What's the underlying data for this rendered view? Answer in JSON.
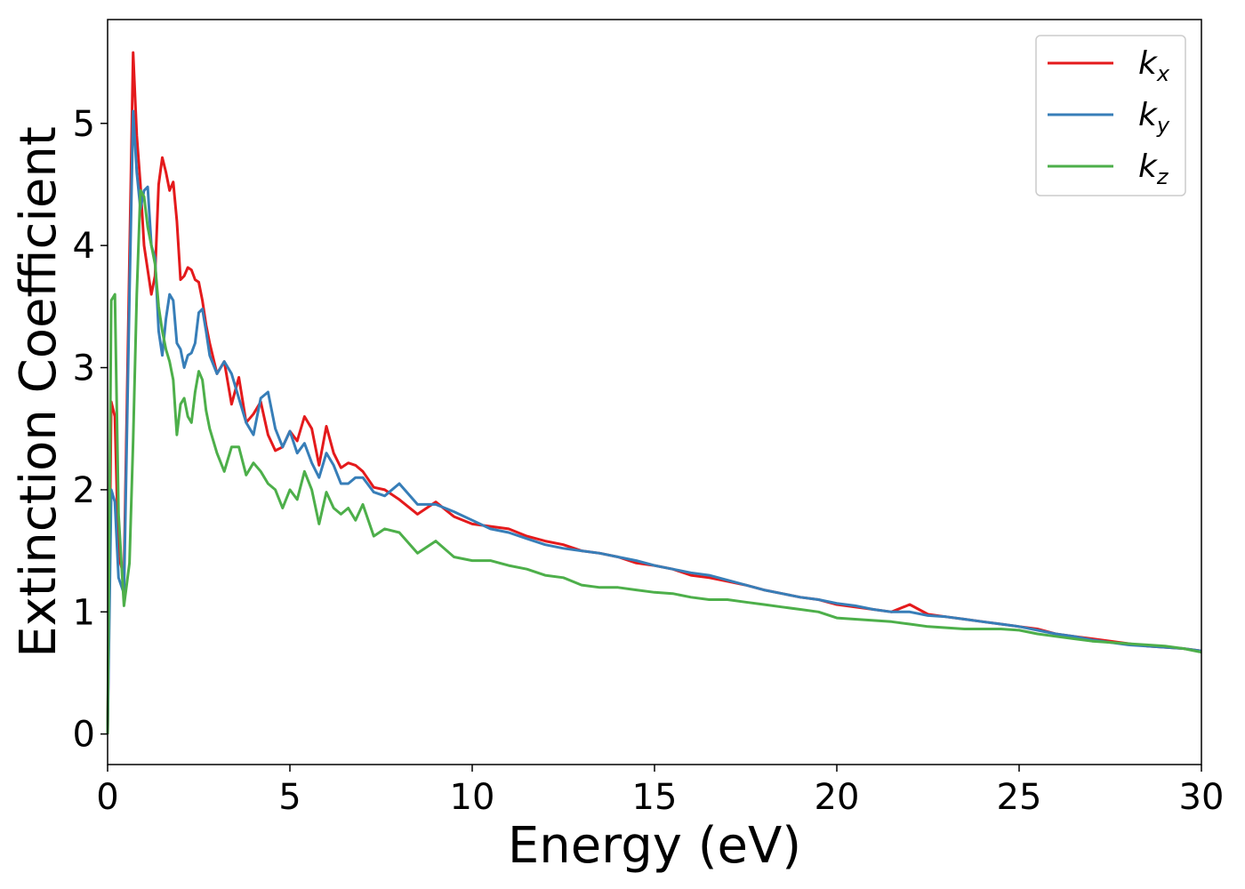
{
  "chart_data": {
    "type": "line",
    "title": "",
    "xlabel": "Energy (eV)",
    "ylabel": "Extinction Coefficient",
    "xlim": [
      0,
      30
    ],
    "ylim": [
      -0.25,
      5.85
    ],
    "xticks": [
      0,
      5,
      10,
      15,
      20,
      25,
      30
    ],
    "yticks": [
      0,
      1,
      2,
      3,
      4,
      5
    ],
    "grid": false,
    "legend_position": "top-right",
    "series": [
      {
        "name": "kx",
        "legend_base": "k",
        "legend_sub": "x",
        "color": "#e41a1c",
        "x": [
          0,
          0.1,
          0.2,
          0.3,
          0.45,
          0.6,
          0.7,
          0.8,
          0.9,
          1.0,
          1.1,
          1.2,
          1.3,
          1.4,
          1.5,
          1.6,
          1.7,
          1.8,
          1.9,
          2.0,
          2.1,
          2.2,
          2.3,
          2.4,
          2.5,
          2.6,
          2.7,
          2.8,
          3.0,
          3.2,
          3.4,
          3.6,
          3.8,
          4.0,
          4.2,
          4.4,
          4.6,
          4.8,
          5.0,
          5.2,
          5.4,
          5.6,
          5.8,
          6.0,
          6.2,
          6.4,
          6.6,
          6.8,
          7.0,
          7.3,
          7.6,
          8.0,
          8.5,
          9.0,
          9.5,
          10.0,
          10.5,
          11.0,
          11.5,
          12.0,
          12.5,
          13.0,
          13.5,
          14.0,
          14.5,
          15.0,
          15.5,
          16.0,
          16.5,
          17.0,
          17.5,
          18.0,
          18.5,
          19.0,
          19.5,
          20.0,
          20.5,
          21.0,
          21.5,
          22.0,
          22.5,
          23.0,
          23.5,
          24.0,
          24.5,
          25.0,
          25.5,
          26.0,
          26.5,
          27.0,
          27.5,
          28.0,
          28.5,
          29.0,
          29.5,
          30.0
        ],
        "y": [
          0.0,
          2.72,
          2.6,
          1.45,
          1.3,
          3.9,
          5.58,
          4.9,
          4.5,
          4.0,
          3.8,
          3.6,
          3.75,
          4.5,
          4.72,
          4.6,
          4.45,
          4.52,
          4.2,
          3.72,
          3.75,
          3.82,
          3.8,
          3.72,
          3.7,
          3.55,
          3.35,
          3.2,
          2.95,
          3.05,
          2.7,
          2.92,
          2.55,
          2.62,
          2.72,
          2.45,
          2.32,
          2.35,
          2.48,
          2.4,
          2.6,
          2.5,
          2.2,
          2.52,
          2.3,
          2.18,
          2.22,
          2.2,
          2.15,
          2.02,
          2.0,
          1.92,
          1.8,
          1.9,
          1.78,
          1.72,
          1.7,
          1.68,
          1.62,
          1.58,
          1.55,
          1.5,
          1.48,
          1.45,
          1.4,
          1.38,
          1.35,
          1.3,
          1.28,
          1.25,
          1.22,
          1.18,
          1.15,
          1.12,
          1.1,
          1.06,
          1.04,
          1.02,
          1.0,
          1.06,
          0.98,
          0.96,
          0.94,
          0.92,
          0.9,
          0.88,
          0.86,
          0.82,
          0.8,
          0.78,
          0.76,
          0.74,
          0.72,
          0.71,
          0.7,
          0.68
        ]
      },
      {
        "name": "ky",
        "legend_base": "k",
        "legend_sub": "y",
        "color": "#377eb8",
        "x": [
          0,
          0.1,
          0.2,
          0.3,
          0.45,
          0.6,
          0.7,
          0.8,
          0.9,
          1.0,
          1.1,
          1.2,
          1.3,
          1.4,
          1.5,
          1.6,
          1.7,
          1.8,
          1.9,
          2.0,
          2.1,
          2.2,
          2.3,
          2.4,
          2.5,
          2.6,
          2.7,
          2.8,
          3.0,
          3.2,
          3.4,
          3.6,
          3.8,
          4.0,
          4.2,
          4.4,
          4.6,
          4.8,
          5.0,
          5.2,
          5.4,
          5.6,
          5.8,
          6.0,
          6.2,
          6.4,
          6.6,
          6.8,
          7.0,
          7.3,
          7.6,
          8.0,
          8.5,
          9.0,
          9.5,
          10.0,
          10.5,
          11.0,
          11.5,
          12.0,
          12.5,
          13.0,
          13.5,
          14.0,
          14.5,
          15.0,
          15.5,
          16.0,
          16.5,
          17.0,
          17.5,
          18.0,
          18.5,
          19.0,
          19.5,
          20.0,
          20.5,
          21.0,
          21.5,
          22.0,
          22.5,
          23.0,
          23.5,
          24.0,
          24.5,
          25.0,
          25.5,
          26.0,
          26.5,
          27.0,
          27.5,
          28.0,
          28.5,
          29.0,
          29.5,
          30.0
        ],
        "y": [
          0.0,
          2.0,
          1.9,
          1.28,
          1.15,
          3.6,
          5.1,
          4.6,
          4.3,
          4.45,
          4.48,
          4.0,
          3.9,
          3.3,
          3.1,
          3.4,
          3.6,
          3.55,
          3.2,
          3.15,
          3.0,
          3.1,
          3.12,
          3.2,
          3.45,
          3.48,
          3.3,
          3.1,
          2.95,
          3.05,
          2.95,
          2.75,
          2.55,
          2.45,
          2.75,
          2.8,
          2.5,
          2.35,
          2.48,
          2.3,
          2.38,
          2.22,
          2.1,
          2.3,
          2.2,
          2.05,
          2.05,
          2.1,
          2.1,
          1.98,
          1.95,
          2.05,
          1.88,
          1.88,
          1.82,
          1.75,
          1.68,
          1.65,
          1.6,
          1.55,
          1.52,
          1.5,
          1.48,
          1.45,
          1.42,
          1.38,
          1.35,
          1.32,
          1.3,
          1.26,
          1.22,
          1.18,
          1.15,
          1.12,
          1.1,
          1.07,
          1.05,
          1.02,
          1.0,
          1.0,
          0.97,
          0.96,
          0.94,
          0.92,
          0.9,
          0.88,
          0.85,
          0.82,
          0.8,
          0.77,
          0.75,
          0.73,
          0.72,
          0.71,
          0.7,
          0.68
        ]
      },
      {
        "name": "kz",
        "legend_base": "k",
        "legend_sub": "z",
        "color": "#4daf4a",
        "x": [
          0,
          0.1,
          0.2,
          0.3,
          0.45,
          0.6,
          0.7,
          0.8,
          0.9,
          1.0,
          1.1,
          1.2,
          1.3,
          1.4,
          1.5,
          1.6,
          1.7,
          1.8,
          1.9,
          2.0,
          2.1,
          2.2,
          2.3,
          2.4,
          2.5,
          2.6,
          2.7,
          2.8,
          3.0,
          3.2,
          3.4,
          3.6,
          3.8,
          4.0,
          4.2,
          4.4,
          4.6,
          4.8,
          5.0,
          5.2,
          5.4,
          5.6,
          5.8,
          6.0,
          6.2,
          6.4,
          6.6,
          6.8,
          7.0,
          7.3,
          7.6,
          8.0,
          8.5,
          9.0,
          9.5,
          10.0,
          10.5,
          11.0,
          11.5,
          12.0,
          12.5,
          13.0,
          13.5,
          14.0,
          14.5,
          15.0,
          15.5,
          16.0,
          16.5,
          17.0,
          17.5,
          18.0,
          18.5,
          19.0,
          19.5,
          20.0,
          20.5,
          21.0,
          21.5,
          22.0,
          22.5,
          23.0,
          23.5,
          24.0,
          24.5,
          25.0,
          25.5,
          26.0,
          26.5,
          27.0,
          27.5,
          28.0,
          28.5,
          29.0,
          29.5,
          30.0
        ],
        "y": [
          0.0,
          3.55,
          3.6,
          1.8,
          1.05,
          1.4,
          2.4,
          3.6,
          4.45,
          4.4,
          4.15,
          4.0,
          3.85,
          3.5,
          3.3,
          3.15,
          3.05,
          2.9,
          2.45,
          2.7,
          2.75,
          2.6,
          2.55,
          2.8,
          2.97,
          2.9,
          2.65,
          2.5,
          2.3,
          2.15,
          2.35,
          2.35,
          2.12,
          2.22,
          2.15,
          2.05,
          2.0,
          1.85,
          2.0,
          1.92,
          2.15,
          2.0,
          1.72,
          1.98,
          1.85,
          1.8,
          1.85,
          1.75,
          1.88,
          1.62,
          1.68,
          1.65,
          1.48,
          1.58,
          1.45,
          1.42,
          1.42,
          1.38,
          1.35,
          1.3,
          1.28,
          1.22,
          1.2,
          1.2,
          1.18,
          1.16,
          1.15,
          1.12,
          1.1,
          1.1,
          1.08,
          1.06,
          1.04,
          1.02,
          1.0,
          0.95,
          0.94,
          0.93,
          0.92,
          0.9,
          0.88,
          0.87,
          0.86,
          0.86,
          0.86,
          0.85,
          0.82,
          0.8,
          0.78,
          0.76,
          0.75,
          0.74,
          0.73,
          0.72,
          0.7,
          0.67
        ]
      }
    ]
  }
}
